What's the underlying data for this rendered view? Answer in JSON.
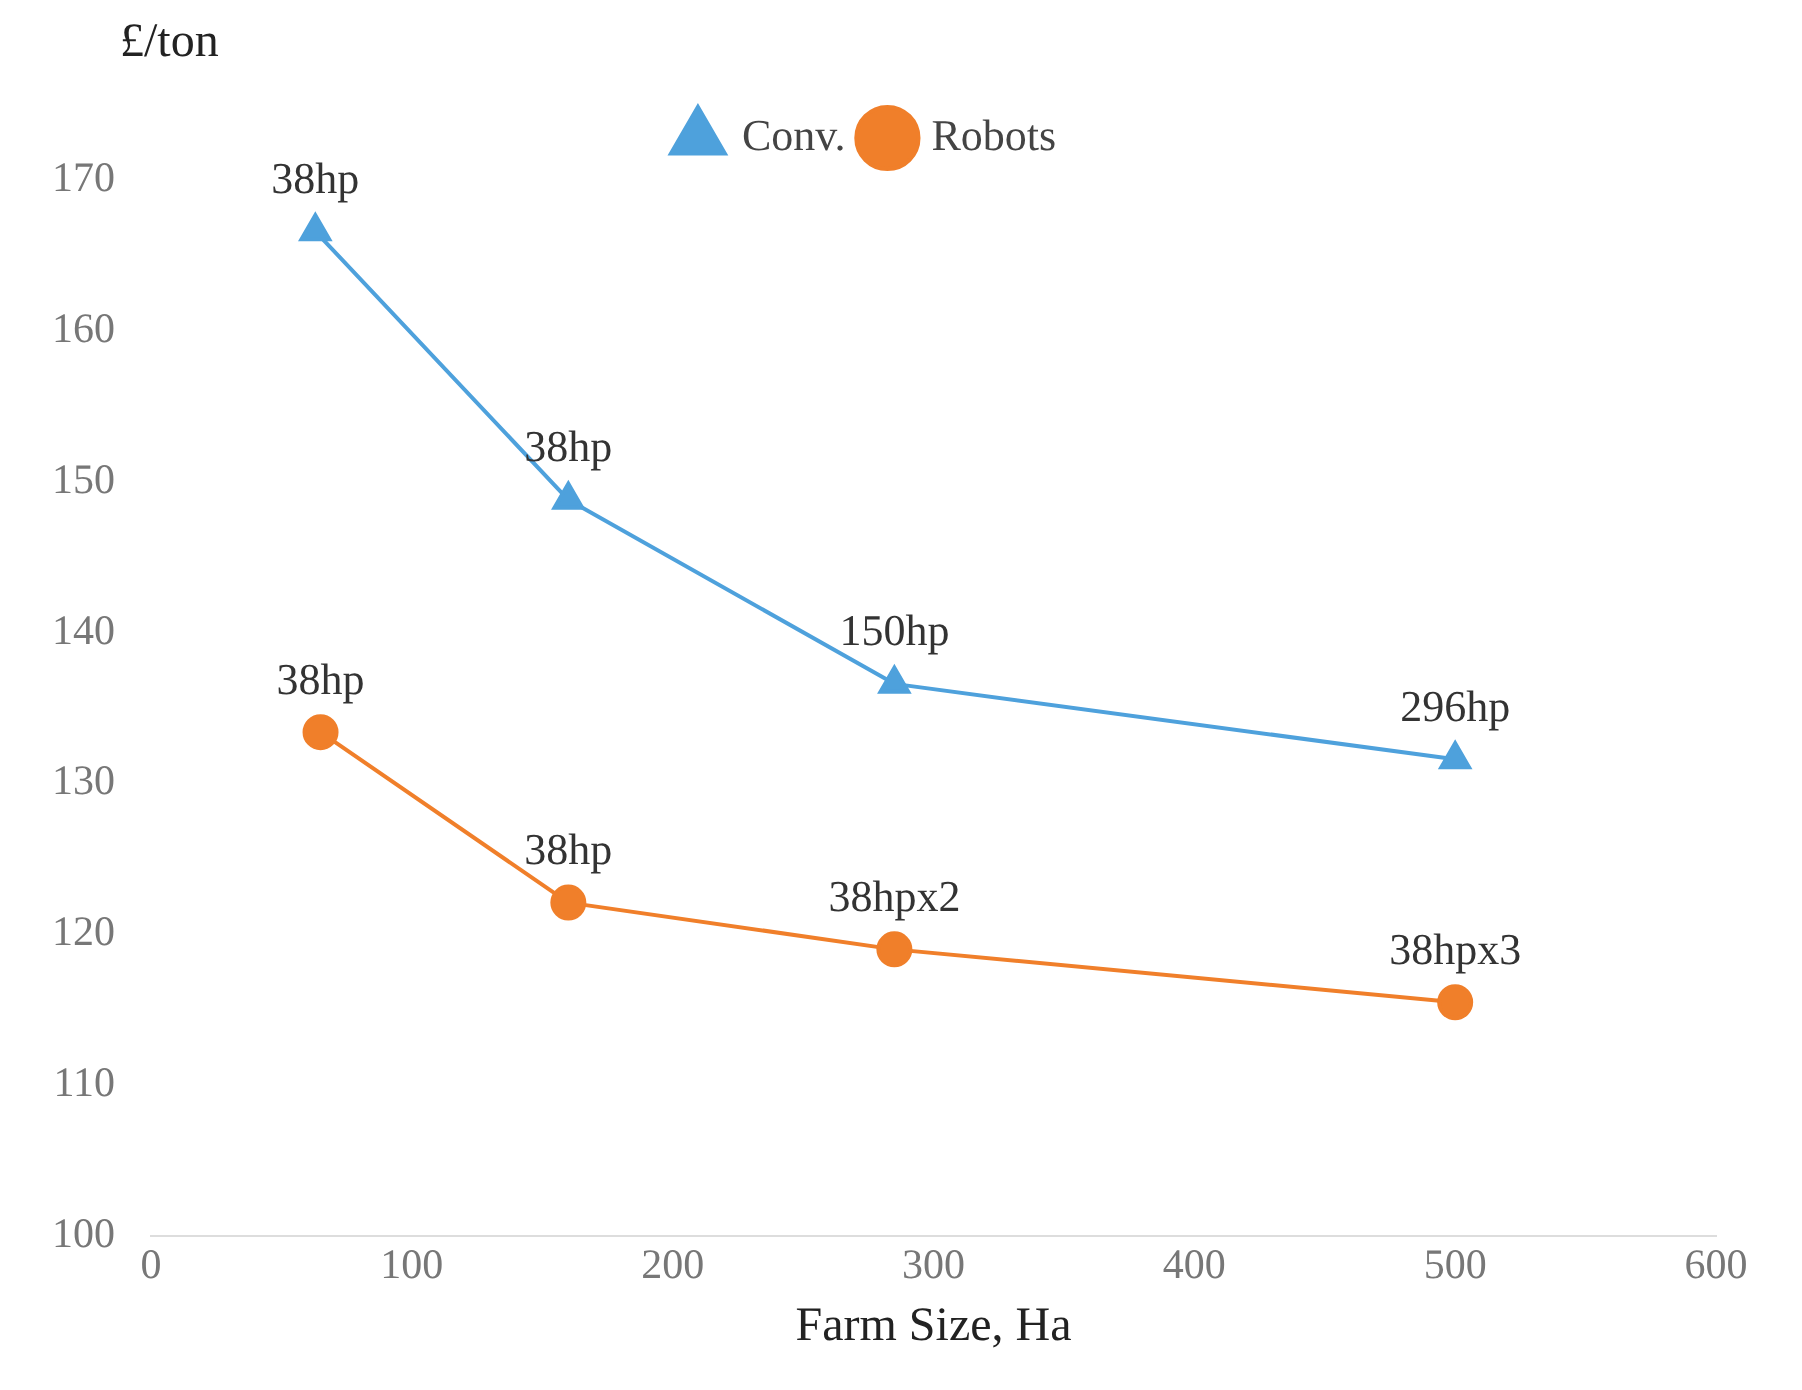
{
  "chart_data": {
    "type": "line",
    "ylabel": "£/ton",
    "xlabel": "Farm Size, Ha",
    "xlim": [
      0,
      600
    ],
    "xticks": [
      0,
      100,
      200,
      300,
      400,
      500,
      600
    ],
    "ylim": [
      100,
      170
    ],
    "yticks": [
      100,
      110,
      120,
      130,
      140,
      150,
      160,
      170
    ],
    "grid": false,
    "legend": "top",
    "series": [
      {
        "name": "Conv.",
        "color": "#4ea1dc",
        "marker": "triangle",
        "x": [
          63,
          160,
          285,
          500
        ],
        "values": [
          166.6,
          148.8,
          136.6,
          131.6
        ]
      },
      {
        "name": "Robots",
        "color": "#f07f2a",
        "marker": "circle",
        "x": [
          65,
          160,
          285,
          500
        ],
        "values": [
          133.4,
          122.1,
          119.0,
          115.5
        ]
      }
    ],
    "annotations": [
      {
        "text": "38hp",
        "x": 63,
        "y": 166.6
      },
      {
        "text": "38hp",
        "x": 160,
        "y": 148.8
      },
      {
        "text": "150hp",
        "x": 285,
        "y": 136.6
      },
      {
        "text": "296hp",
        "x": 500,
        "y": 131.6
      },
      {
        "text": "38hp",
        "x": 65,
        "y": 133.4
      },
      {
        "text": "38hp",
        "x": 160,
        "y": 122.1
      },
      {
        "text": "38hpx2",
        "x": 285,
        "y": 119.0
      },
      {
        "text": "38hpx3",
        "x": 500,
        "y": 115.5
      }
    ]
  }
}
